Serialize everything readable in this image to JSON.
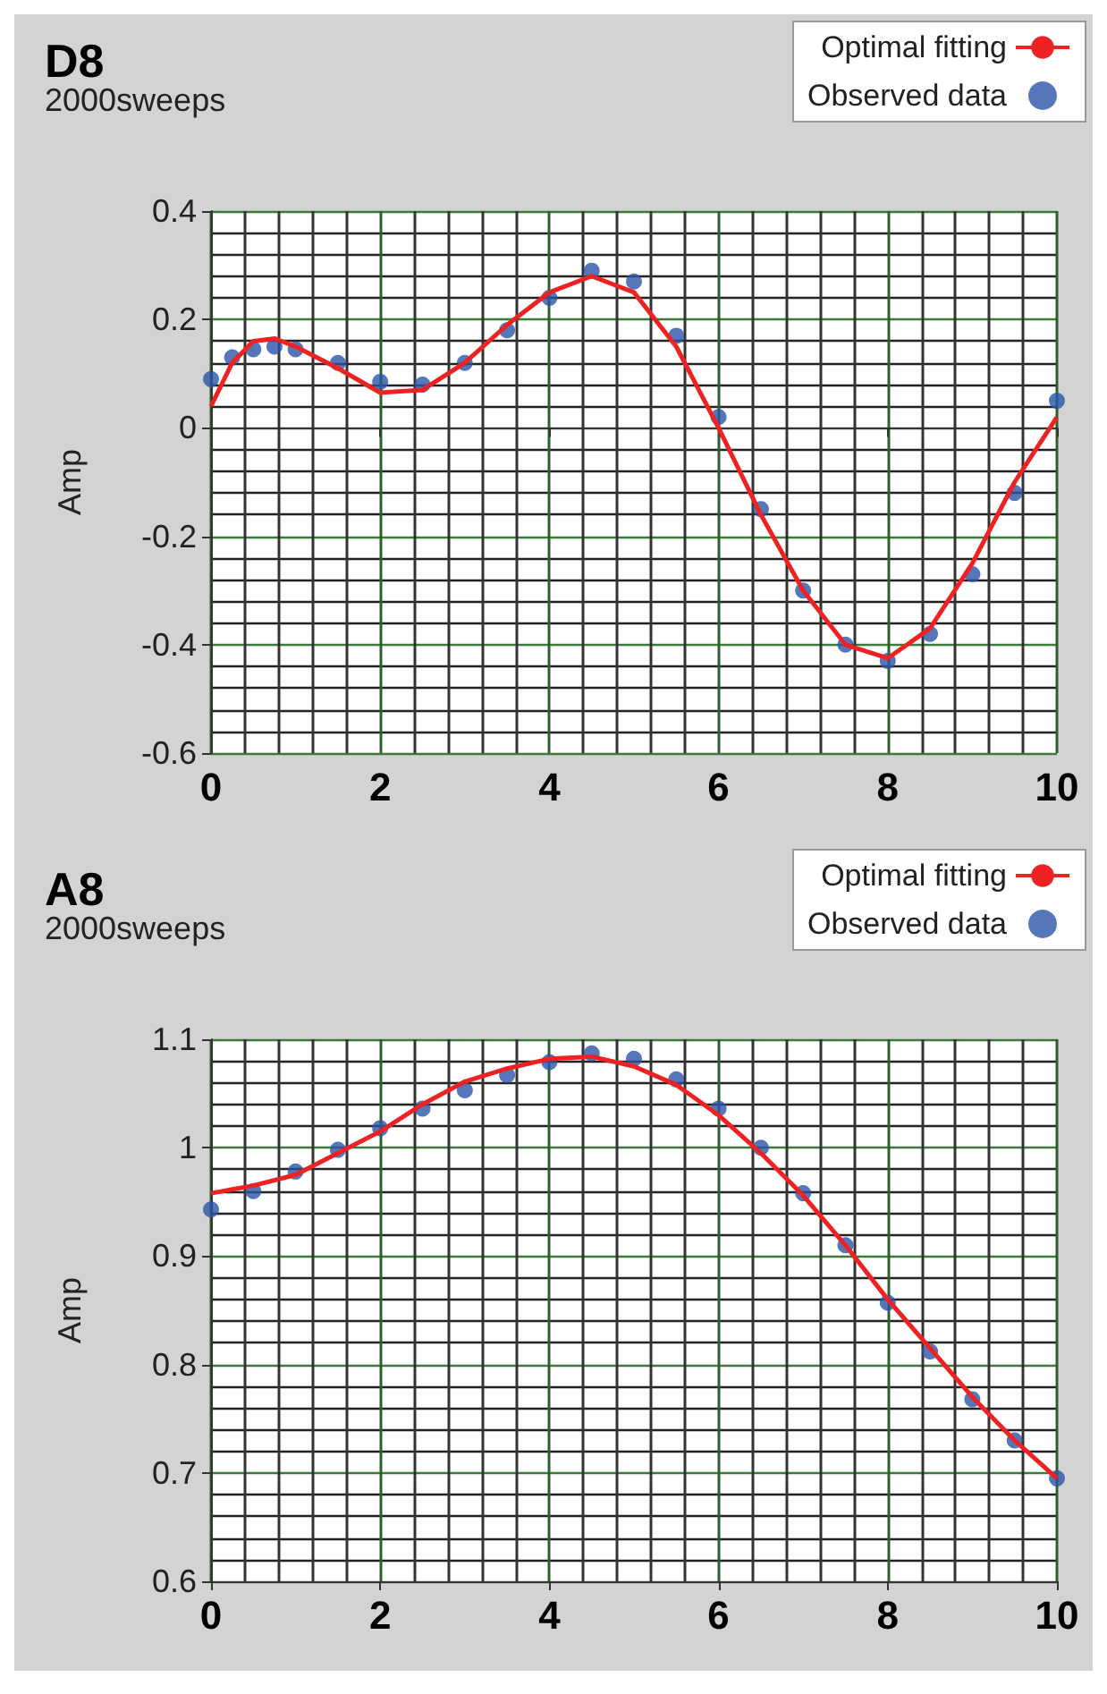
{
  "chart_data": [
    {
      "type": "line",
      "title": "D8",
      "subtitle": "2000sweeps",
      "ylabel": "Amp",
      "xlim": [
        0,
        10
      ],
      "xticks": [
        0,
        2,
        4,
        6,
        8,
        10
      ],
      "ylim": [
        -0.6,
        0.4
      ],
      "yticks": [
        -0.6,
        -0.4,
        -0.2,
        0,
        0.2,
        0.4
      ],
      "grid": true,
      "legend": "top right",
      "x": [
        0,
        0.25,
        0.5,
        0.75,
        1,
        1.5,
        2,
        2.5,
        3,
        3.5,
        4,
        4.5,
        5,
        5.5,
        6,
        6.5,
        7,
        7.5,
        8,
        8.5,
        9,
        9.5,
        10
      ],
      "series": [
        {
          "name": "Optimal fitting",
          "color": "#ee2222",
          "values": [
            0.04,
            0.12,
            0.16,
            0.165,
            0.15,
            0.11,
            0.065,
            0.07,
            0.12,
            0.19,
            0.25,
            0.28,
            0.25,
            0.15,
            0.0,
            -0.16,
            -0.3,
            -0.4,
            -0.425,
            -0.37,
            -0.25,
            -0.1,
            0.02
          ]
        },
        {
          "name": "Observed data",
          "type": "scatter",
          "marker": "circle",
          "color": "#2b55a8",
          "values": [
            0.09,
            0.13,
            0.145,
            0.15,
            0.145,
            0.12,
            0.085,
            0.08,
            0.12,
            0.18,
            0.24,
            0.29,
            0.27,
            0.17,
            0.02,
            -0.15,
            -0.3,
            -0.4,
            -0.43,
            -0.38,
            -0.27,
            -0.12,
            0.05
          ]
        }
      ]
    },
    {
      "type": "line",
      "title": "A8",
      "subtitle": "2000sweeps",
      "ylabel": "Amp",
      "xlim": [
        0,
        10
      ],
      "xticks": [
        0,
        2,
        4,
        6,
        8,
        10
      ],
      "ylim": [
        0.6,
        1.1
      ],
      "yticks": [
        0.6,
        0.7,
        0.8,
        0.9,
        1,
        1.1
      ],
      "grid": true,
      "legend": "top right",
      "x": [
        0,
        0.5,
        1,
        1.5,
        2,
        2.5,
        3,
        3.5,
        4,
        4.5,
        5,
        5.5,
        6,
        6.5,
        7,
        7.5,
        8,
        8.5,
        9,
        9.5,
        10
      ],
      "series": [
        {
          "name": "Optimal fitting",
          "color": "#ee2222",
          "values": [
            0.958,
            0.965,
            0.975,
            0.995,
            1.015,
            1.04,
            1.061,
            1.073,
            1.082,
            1.084,
            1.075,
            1.058,
            1.03,
            0.995,
            0.956,
            0.91,
            0.86,
            0.815,
            0.77,
            0.73,
            0.695
          ]
        },
        {
          "name": "Observed data",
          "type": "scatter",
          "marker": "circle",
          "color": "#2b55a8",
          "values": [
            0.943,
            0.96,
            0.978,
            0.998,
            1.018,
            1.036,
            1.053,
            1.067,
            1.079,
            1.087,
            1.082,
            1.063,
            1.036,
            1.0,
            0.958,
            0.91,
            0.857,
            0.812,
            0.768,
            0.73,
            0.695
          ]
        }
      ]
    }
  ]
}
